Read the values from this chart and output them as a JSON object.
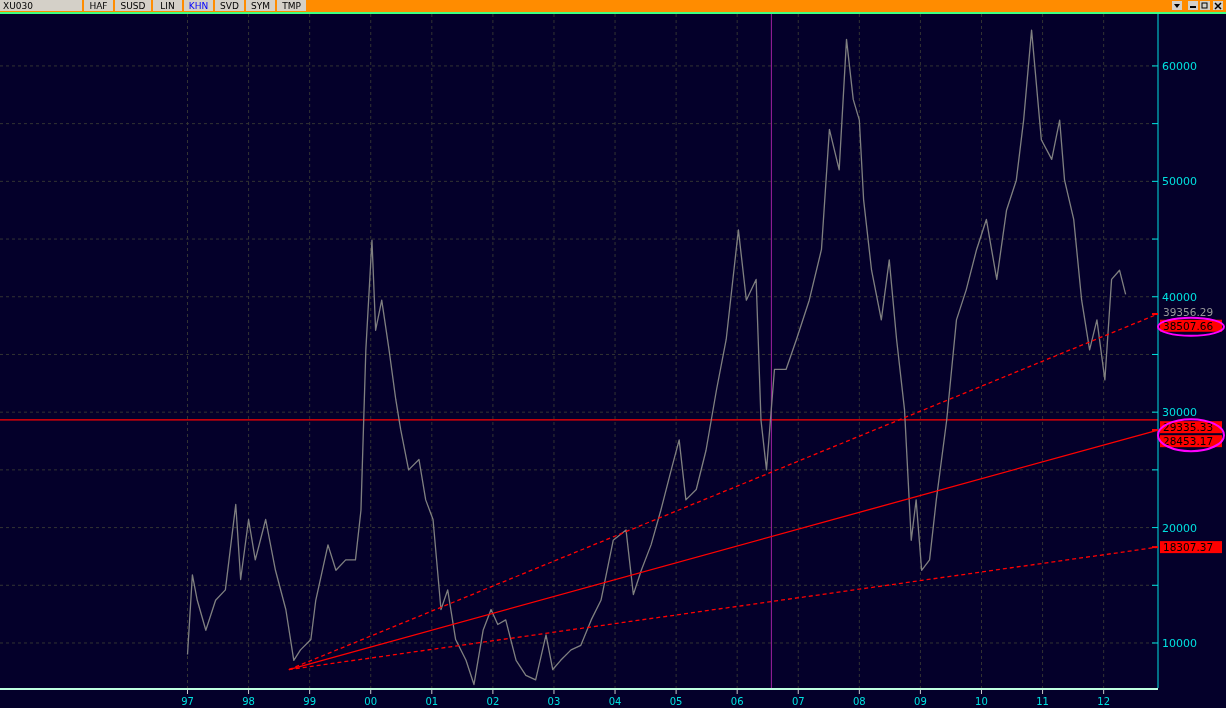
{
  "chart_data": {
    "type": "line",
    "title": "XU030",
    "annotations": [
      "HAF",
      "SUSD",
      "LIN",
      "KHN",
      "SVD",
      "SYM",
      "TMP",
      "39356.29"
    ],
    "xlim": [
      1993.93,
      2012.89
    ],
    "xticks": [
      {
        "value": 1997,
        "label": "97"
      },
      {
        "value": 1998,
        "label": "98"
      },
      {
        "value": 1999,
        "label": "99"
      },
      {
        "value": 2000,
        "label": "00"
      },
      {
        "value": 2001,
        "label": "01"
      },
      {
        "value": 2002,
        "label": "02"
      },
      {
        "value": 2003,
        "label": "03"
      },
      {
        "value": 2004,
        "label": "04"
      },
      {
        "value": 2005,
        "label": "05"
      },
      {
        "value": 2006,
        "label": "06"
      },
      {
        "value": 2007,
        "label": "07"
      },
      {
        "value": 2008,
        "label": "08"
      },
      {
        "value": 2009,
        "label": "09"
      },
      {
        "value": 2010,
        "label": "10"
      },
      {
        "value": 2011,
        "label": "11"
      },
      {
        "value": 2012,
        "label": "12"
      }
    ],
    "ylim": [
      6100,
      64500
    ],
    "yticks": [
      10000,
      {
        "value": 15000,
        "label": null
      },
      20000,
      {
        "value": 25000,
        "label": null
      },
      30000,
      {
        "value": 35000,
        "label": null
      },
      40000,
      {
        "value": 45000,
        "label": null
      },
      50000,
      {
        "value": 55000,
        "label": null
      },
      60000
    ],
    "grid": true,
    "marker": "none",
    "ref_lines": [
      {
        "axis": "y",
        "value": 29335.33,
        "label": "29335.33",
        "color": "#ff0000"
      },
      {
        "axis": "x",
        "value": 2006.56,
        "label": null,
        "color": "#a020a0"
      }
    ],
    "series": [
      {
        "type": "line",
        "color": "#808080",
        "line_style": "solid",
        "x": [
          1997.0,
          1997.08,
          1997.16,
          1997.3,
          1997.46,
          1997.62,
          1997.79,
          1997.87,
          1998.0,
          1998.11,
          1998.28,
          1998.44,
          1998.61,
          1998.74,
          1998.85,
          1999.02,
          1999.1,
          1999.3,
          1999.43,
          1999.59,
          1999.75,
          1999.84,
          1999.92,
          2000.02,
          2000.08,
          2000.18,
          2000.3,
          2000.41,
          2000.49,
          2000.62,
          2000.79,
          2000.9,
          2001.02,
          2001.15,
          2001.26,
          2001.39,
          2001.56,
          2001.69,
          2001.84,
          2001.97,
          2002.08,
          2002.21,
          2002.38,
          2002.54,
          2002.7,
          2002.87,
          2002.98,
          2003.11,
          2003.28,
          2003.44,
          2003.61,
          2003.77,
          2003.97,
          2004.18,
          2004.3,
          2004.43,
          2004.59,
          2004.75,
          2004.92,
          2005.05,
          2005.16,
          2005.33,
          2005.49,
          2005.66,
          2005.82,
          2006.02,
          2006.15,
          2006.31,
          2006.39,
          2006.48,
          2006.61,
          2006.8,
          2006.97,
          2007.18,
          2007.38,
          2007.51,
          2007.67,
          2007.79,
          2007.9,
          2008.0,
          2008.07,
          2008.2,
          2008.36,
          2008.49,
          2008.61,
          2008.74,
          2008.85,
          2008.93,
          2009.02,
          2009.15,
          2009.26,
          2009.43,
          2009.59,
          2009.75,
          2009.92,
          2010.08,
          2010.25,
          2010.41,
          2010.57,
          2010.69,
          2010.82,
          2010.98,
          2011.15,
          2011.28,
          2011.36,
          2011.51,
          2011.64,
          2011.77,
          2011.89,
          2012.02,
          2012.13,
          2012.26,
          2012.36
        ],
        "values": [
          9000,
          15900,
          13700,
          11100,
          13700,
          14600,
          22000,
          15500,
          20700,
          17200,
          20700,
          16300,
          12900,
          8500,
          9400,
          10300,
          13700,
          18500,
          16300,
          17200,
          17200,
          21500,
          35400,
          44900,
          37100,
          39700,
          35400,
          31100,
          28500,
          25000,
          25900,
          22400,
          20700,
          12900,
          14600,
          10300,
          8500,
          6400,
          11100,
          12900,
          11600,
          12000,
          8500,
          7200,
          6800,
          10700,
          7700,
          8500,
          9400,
          9800,
          12000,
          13700,
          18900,
          19800,
          14200,
          16300,
          18500,
          21500,
          25000,
          27600,
          22400,
          23300,
          26700,
          31900,
          36300,
          45800,
          39700,
          41500,
          29300,
          25000,
          33700,
          33700,
          36300,
          39700,
          44100,
          54500,
          51000,
          62300,
          57100,
          55300,
          48400,
          42300,
          38000,
          43200,
          36300,
          30200,
          18900,
          22400,
          16300,
          17200,
          22400,
          29300,
          38000,
          40600,
          44100,
          46700,
          41500,
          47500,
          50100,
          55300,
          63100,
          53600,
          51900,
          55300,
          50100,
          46700,
          39700,
          35400,
          38000,
          32800,
          41500,
          42300,
          40200
        ]
      },
      {
        "type": "line",
        "color": "#ff0000",
        "line_style": "dashed",
        "x": [
          1998.66,
          2012.89
        ],
        "values": [
          7700,
          38507.66
        ],
        "value_labels": [
          null,
          "38507.66"
        ]
      },
      {
        "type": "line",
        "color": "#ff0000",
        "line_style": "solid",
        "x": [
          1998.66,
          2012.89
        ],
        "values": [
          7700,
          28453.17
        ],
        "value_labels": [
          null,
          "28453.17"
        ]
      },
      {
        "type": "line",
        "color": "#ff0000",
        "line_style": "dashed",
        "x": [
          1998.66,
          2012.89
        ],
        "values": [
          7700,
          18307.37
        ],
        "value_labels": [
          null,
          "18307.37"
        ]
      }
    ]
  }
}
